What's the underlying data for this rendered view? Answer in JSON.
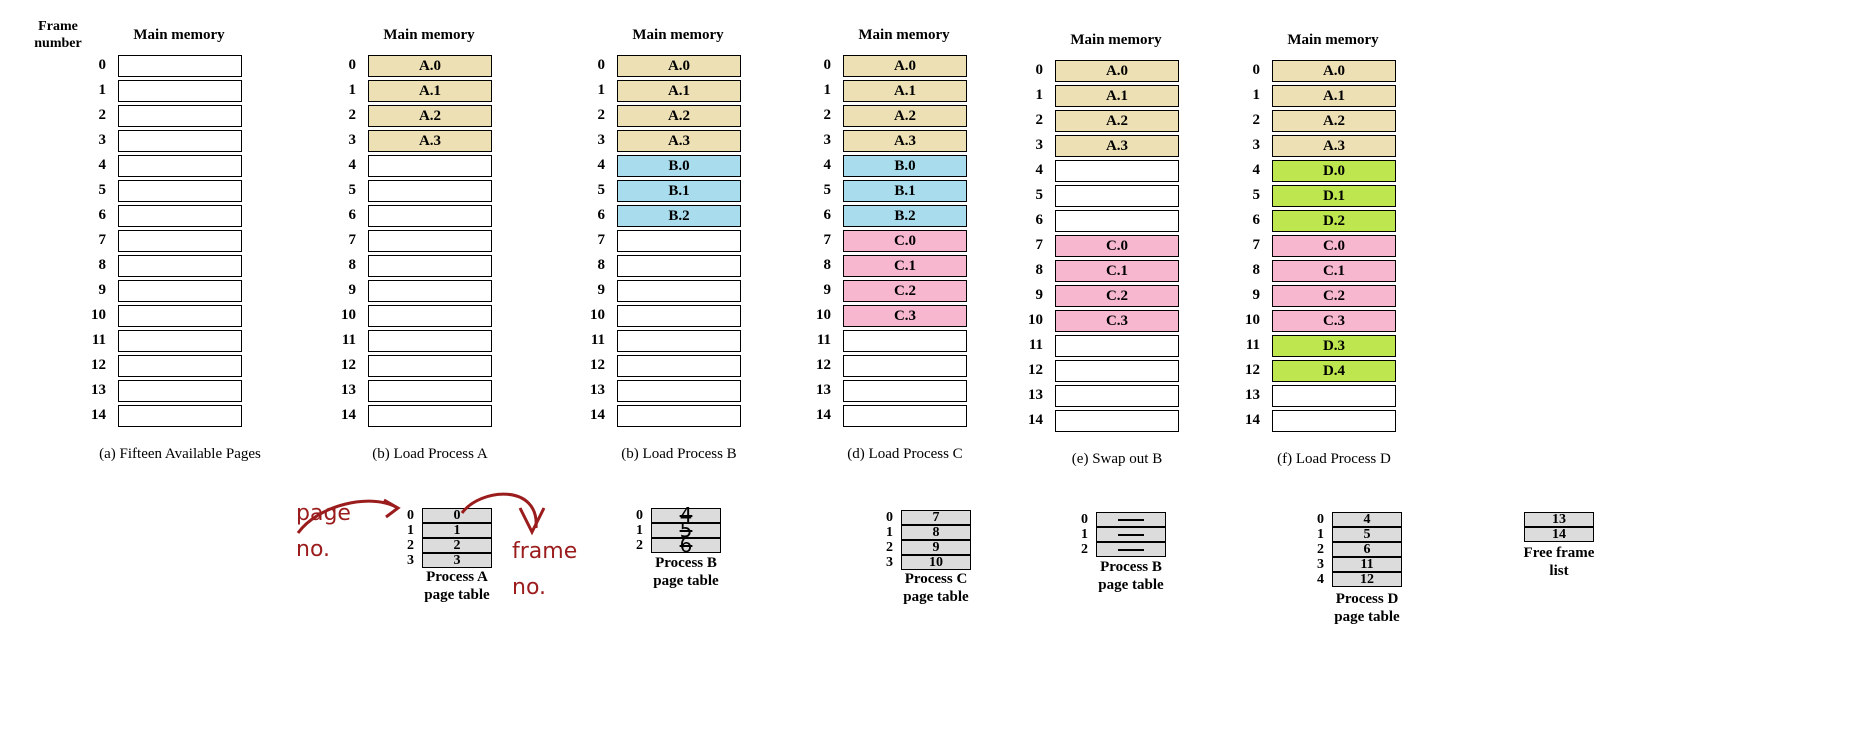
{
  "header": {
    "frame_number": "Frame\nnumber"
  },
  "memory_title": "Main memory",
  "colors": {
    "A": "#ede0b5",
    "B": "#a9dced",
    "C": "#f7b7cf",
    "D": "#bde64f",
    "empty": "#ffffff"
  },
  "panels": [
    {
      "caption": "(a) Fifteen Available Pages",
      "frames": [
        "",
        "",
        "",
        "",
        "",
        "",
        "",
        "",
        "",
        "",
        "",
        "",
        "",
        "",
        ""
      ]
    },
    {
      "caption": "(b) Load Process A",
      "frames": [
        "A.0",
        "A.1",
        "A.2",
        "A.3",
        "",
        "",
        "",
        "",
        "",
        "",
        "",
        "",
        "",
        "",
        ""
      ]
    },
    {
      "caption": "(b) Load Process B",
      "frames": [
        "A.0",
        "A.1",
        "A.2",
        "A.3",
        "B.0",
        "B.1",
        "B.2",
        "",
        "",
        "",
        "",
        "",
        "",
        "",
        ""
      ]
    },
    {
      "caption": "(d) Load Process C",
      "frames": [
        "A.0",
        "A.1",
        "A.2",
        "A.3",
        "B.0",
        "B.1",
        "B.2",
        "C.0",
        "C.1",
        "C.2",
        "C.3",
        "",
        "",
        "",
        ""
      ]
    },
    {
      "caption": "(e) Swap out B",
      "frames": [
        "A.0",
        "A.1",
        "A.2",
        "A.3",
        "",
        "",
        "",
        "C.0",
        "C.1",
        "C.2",
        "C.3",
        "",
        "",
        "",
        ""
      ]
    },
    {
      "caption": "(f) Load Process D",
      "frames": [
        "A.0",
        "A.1",
        "A.2",
        "A.3",
        "D.0",
        "D.1",
        "D.2",
        "C.0",
        "C.1",
        "C.2",
        "C.3",
        "D.3",
        "D.4",
        "",
        ""
      ]
    }
  ],
  "page_tables": [
    {
      "label": "Process A\npage table",
      "entries": [
        "0",
        "1",
        "2",
        "3"
      ]
    },
    {
      "label": "Process B\npage table",
      "entries": [
        "4",
        "5",
        "6"
      ]
    },
    {
      "label": "Process C\npage table",
      "entries": [
        "7",
        "8",
        "9",
        "10"
      ]
    },
    {
      "label": "Process B\npage table",
      "entries": [
        "",
        "",
        ""
      ]
    },
    {
      "label": "Process D\npage table",
      "entries": [
        "4",
        "5",
        "6",
        "11",
        "12"
      ]
    }
  ],
  "free_frame_list": {
    "label": "Free frame\nlist",
    "entries": [
      "13",
      "14"
    ]
  },
  "annotations": {
    "page_no": "page\nno.",
    "frame_no": "frame\nno."
  }
}
